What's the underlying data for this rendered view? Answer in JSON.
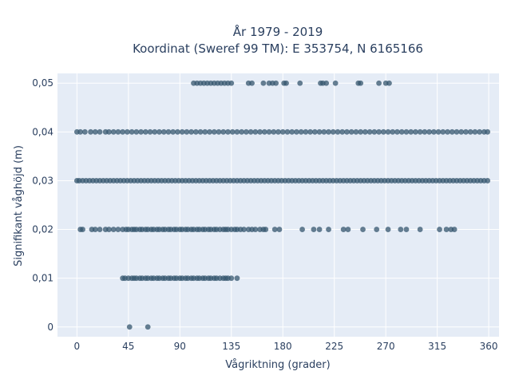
{
  "chart_data": {
    "type": "scatter",
    "title_line1": "År 1979 - 2019",
    "title_line2": "Koordinat (Sweref 99 TM): E 353754, N 6165166",
    "xlabel": "Vågriktning (grader)",
    "ylabel": "Signifikant våghöjd (m)",
    "xlim": [
      -17,
      369
    ],
    "ylim": [
      -0.002,
      0.052
    ],
    "xticks": [
      0,
      45,
      90,
      135,
      180,
      225,
      270,
      315,
      360
    ],
    "yticks": [
      0,
      0.01,
      0.02,
      0.03,
      0.04,
      0.05
    ],
    "ytick_labels": [
      "0",
      "0,01",
      "0,02",
      "0,03",
      "0,04",
      "0,05"
    ],
    "grid": true,
    "marker_color": "#34556d",
    "background": "#e5ecf6",
    "series": [
      {
        "y": 0,
        "x": [
          46,
          62
        ]
      },
      {
        "y": 0.01,
        "x": [
          40,
          42,
          45,
          48,
          50,
          52,
          55,
          57,
          60,
          62,
          65,
          67,
          70,
          72,
          75,
          77,
          80,
          82,
          85,
          87,
          90,
          92,
          95,
          97,
          100,
          102,
          105,
          107,
          110,
          112,
          115,
          117,
          120,
          122,
          125,
          128,
          130,
          132,
          135,
          140
        ]
      },
      {
        "y": 0.02,
        "x": [
          3,
          5,
          13,
          16,
          20,
          25,
          28,
          32,
          36,
          40,
          43,
          45,
          48,
          50,
          52,
          55,
          57,
          60,
          62,
          65,
          67,
          70,
          72,
          75,
          77,
          80,
          82,
          85,
          87,
          90,
          92,
          95,
          97,
          100,
          102,
          105,
          107,
          110,
          112,
          115,
          117,
          120,
          122,
          125,
          128,
          130,
          132,
          135,
          138,
          140,
          143,
          146,
          150,
          153,
          156,
          160,
          163,
          165,
          173,
          177,
          197,
          207,
          212,
          220,
          233,
          237,
          250,
          262,
          272,
          283,
          288,
          300,
          317,
          323,
          327,
          330
        ]
      },
      {
        "y": 0.03,
        "x": [
          0,
          2,
          5,
          8,
          11,
          14,
          17,
          20,
          23,
          26,
          29,
          32,
          35,
          38,
          41,
          44,
          47,
          50,
          53,
          56,
          59,
          62,
          65,
          68,
          71,
          74,
          77,
          80,
          83,
          86,
          89,
          92,
          95,
          98,
          101,
          104,
          107,
          110,
          113,
          116,
          119,
          122,
          125,
          128,
          131,
          134,
          137,
          140,
          143,
          146,
          149,
          152,
          155,
          158,
          161,
          164,
          167,
          170,
          173,
          176,
          179,
          182,
          185,
          188,
          191,
          194,
          197,
          200,
          203,
          206,
          209,
          212,
          215,
          218,
          221,
          224,
          227,
          230,
          233,
          236,
          239,
          242,
          245,
          248,
          251,
          254,
          257,
          260,
          263,
          266,
          269,
          272,
          275,
          278,
          281,
          284,
          287,
          290,
          293,
          296,
          299,
          302,
          305,
          308,
          311,
          314,
          317,
          320,
          323,
          326,
          329,
          332,
          335,
          338,
          341,
          344,
          347,
          350,
          353,
          356,
          359
        ]
      },
      {
        "y": 0.04,
        "x": [
          0,
          3,
          7,
          12,
          16,
          20,
          25,
          28,
          32,
          36,
          40,
          44,
          48,
          52,
          56,
          60,
          64,
          68,
          72,
          76,
          80,
          84,
          88,
          92,
          96,
          100,
          104,
          108,
          112,
          116,
          120,
          124,
          128,
          132,
          136,
          140,
          144,
          148,
          152,
          156,
          160,
          164,
          168,
          172,
          176,
          180,
          184,
          188,
          192,
          196,
          200,
          204,
          208,
          212,
          216,
          220,
          224,
          228,
          232,
          236,
          240,
          244,
          248,
          252,
          256,
          260,
          264,
          268,
          272,
          276,
          280,
          284,
          288,
          292,
          296,
          300,
          304,
          308,
          312,
          316,
          320,
          324,
          328,
          332,
          336,
          340,
          344,
          348,
          352,
          356,
          359
        ]
      },
      {
        "y": 0.05,
        "x": [
          102,
          105,
          108,
          111,
          114,
          117,
          120,
          123,
          126,
          129,
          132,
          135,
          150,
          153,
          163,
          168,
          171,
          174,
          181,
          183,
          195,
          213,
          215,
          218,
          226,
          246,
          248,
          264,
          270,
          273
        ]
      }
    ]
  }
}
